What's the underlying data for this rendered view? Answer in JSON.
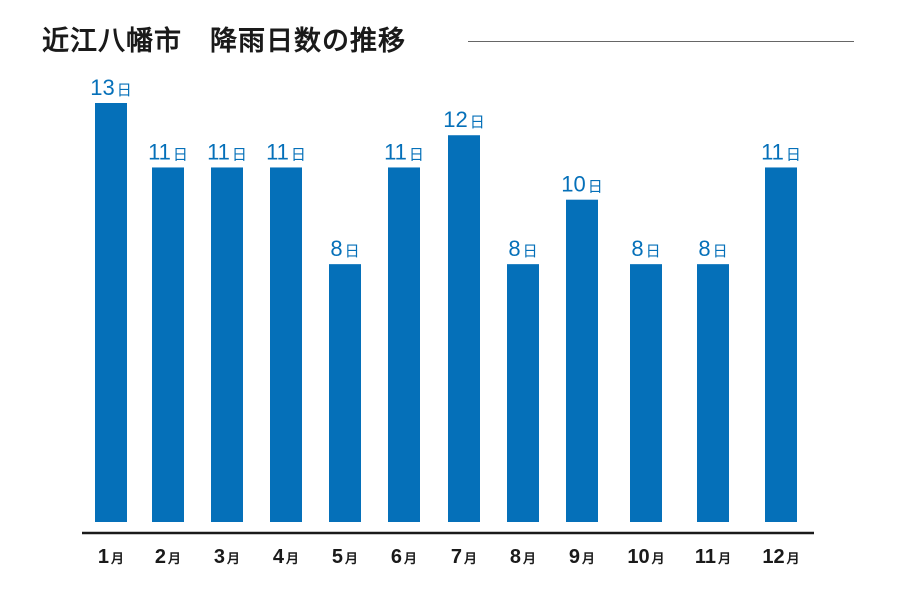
{
  "title": "近江八幡市　降雨日数の推移",
  "colors": {
    "bar": "#0570b9",
    "value_label": "#0570b9",
    "axis": "#1a1a1a",
    "category_label": "#1a1a1a",
    "title_rule": "#666666"
  },
  "chart_data": {
    "type": "bar",
    "title": "近江八幡市　降雨日数の推移",
    "xlabel": "",
    "ylabel": "",
    "categories": [
      "1月",
      "2月",
      "3月",
      "4月",
      "5月",
      "6月",
      "7月",
      "8月",
      "9月",
      "10月",
      "11月",
      "12月"
    ],
    "values": [
      13,
      11,
      11,
      11,
      8,
      11,
      12,
      8,
      10,
      8,
      8,
      11
    ],
    "value_unit": "日",
    "ylim": [
      0,
      13
    ],
    "grid": false,
    "legend": "none"
  }
}
